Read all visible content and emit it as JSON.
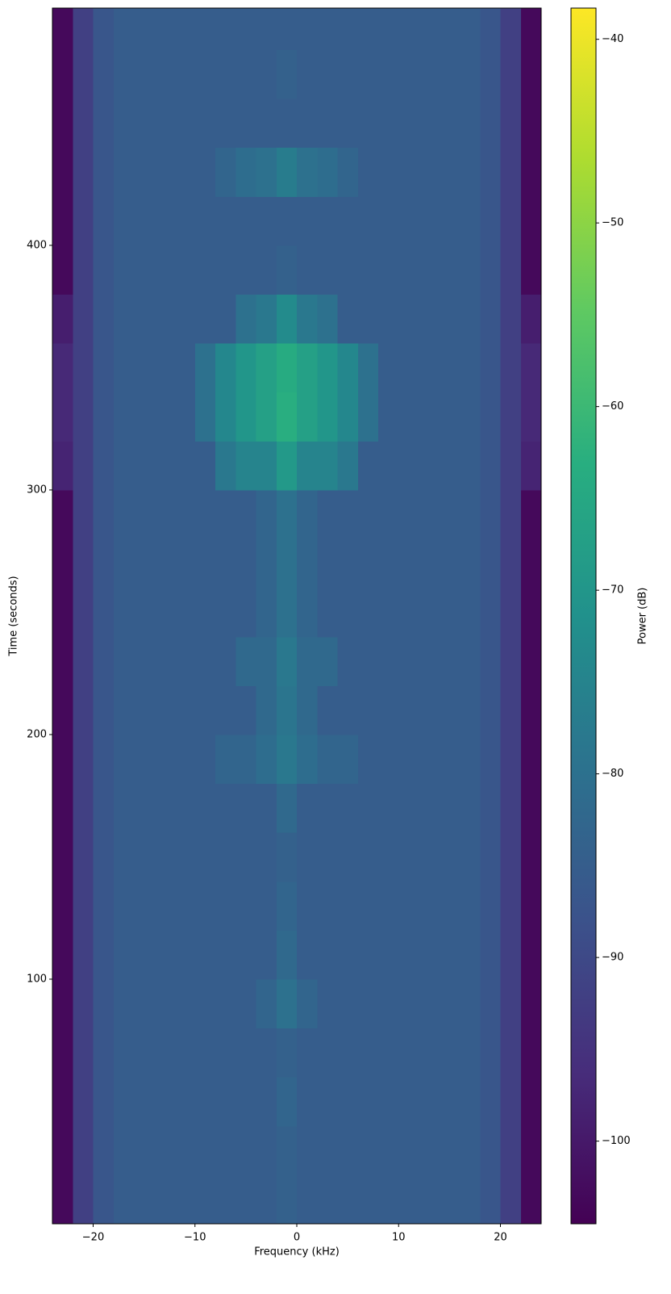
{
  "chart_data": {
    "type": "heatmap",
    "x_label": "Frequency (kHz)",
    "y_label": "Time (seconds)",
    "colorbar_label": "Power (dB)",
    "colormap": "viridis",
    "xlim": [
      -24,
      24
    ],
    "ylim": [
      0,
      497
    ],
    "clim": [
      -104.5,
      -38.3
    ],
    "xticks": [
      {
        "value": -20,
        "label": "−20"
      },
      {
        "value": -10,
        "label": "−10"
      },
      0,
      10,
      20
    ],
    "yticks": [
      100,
      200,
      300,
      400
    ],
    "cticks": [
      {
        "value": -40,
        "label": "−40"
      },
      {
        "value": -50,
        "label": "−50"
      },
      {
        "value": -60,
        "label": "−60"
      },
      {
        "value": -70,
        "label": "−70"
      },
      {
        "value": -80,
        "label": "−80"
      },
      {
        "value": -90,
        "label": "−90"
      },
      {
        "value": -100,
        "label": "−100"
      }
    ],
    "x_bins": [
      -24,
      -22,
      -20,
      -18,
      -16,
      -14,
      -12,
      -10,
      -8,
      -6,
      -4,
      -2,
      0,
      2,
      4,
      6,
      8,
      10,
      12,
      14,
      16,
      18,
      20,
      22,
      24
    ],
    "y_bins": [
      0,
      20,
      40,
      60,
      80,
      100,
      120,
      140,
      160,
      180,
      200,
      220,
      240,
      260,
      280,
      300,
      320,
      340,
      360,
      380,
      400,
      420,
      440,
      460,
      480,
      497
    ],
    "z": [
      [
        -103,
        -92,
        -87,
        -85,
        -85,
        -85,
        -85,
        -85,
        -85,
        -85,
        -85,
        -84,
        -85,
        -85,
        -85,
        -85,
        -85,
        -85,
        -85,
        -85,
        -85,
        -87,
        -92,
        -103
      ],
      [
        -103,
        -92,
        -87,
        -85,
        -85,
        -85,
        -85,
        -85,
        -85,
        -85,
        -85,
        -84,
        -85,
        -85,
        -85,
        -85,
        -85,
        -85,
        -85,
        -85,
        -85,
        -87,
        -92,
        -103
      ],
      [
        -103,
        -92,
        -87,
        -85,
        -85,
        -85,
        -85,
        -85,
        -85,
        -85,
        -85,
        -83,
        -85,
        -85,
        -85,
        -85,
        -85,
        -85,
        -85,
        -85,
        -85,
        -87,
        -92,
        -103
      ],
      [
        -103,
        -92,
        -87,
        -85,
        -85,
        -85,
        -85,
        -85,
        -85,
        -85,
        -85,
        -84,
        -85,
        -85,
        -85,
        -85,
        -85,
        -85,
        -85,
        -85,
        -85,
        -87,
        -92,
        -103
      ],
      [
        -103,
        -92,
        -87,
        -85,
        -85,
        -85,
        -85,
        -85,
        -85,
        -85,
        -83,
        -80,
        -83,
        -85,
        -85,
        -85,
        -85,
        -85,
        -85,
        -85,
        -85,
        -87,
        -92,
        -103
      ],
      [
        -103,
        -92,
        -87,
        -85,
        -85,
        -85,
        -85,
        -85,
        -85,
        -85,
        -85,
        -82,
        -85,
        -85,
        -85,
        -85,
        -85,
        -85,
        -85,
        -85,
        -85,
        -87,
        -92,
        -103
      ],
      [
        -103,
        -92,
        -87,
        -85,
        -85,
        -85,
        -85,
        -85,
        -85,
        -85,
        -85,
        -83,
        -85,
        -85,
        -85,
        -85,
        -85,
        -85,
        -85,
        -85,
        -85,
        -87,
        -92,
        -103
      ],
      [
        -103,
        -92,
        -87,
        -85,
        -85,
        -85,
        -85,
        -85,
        -85,
        -85,
        -85,
        -84,
        -85,
        -85,
        -85,
        -85,
        -85,
        -85,
        -85,
        -85,
        -85,
        -87,
        -92,
        -103
      ],
      [
        -103,
        -92,
        -87,
        -85,
        -85,
        -85,
        -85,
        -85,
        -85,
        -85,
        -85,
        -82,
        -85,
        -85,
        -85,
        -85,
        -85,
        -85,
        -85,
        -85,
        -85,
        -87,
        -92,
        -103
      ],
      [
        -103,
        -92,
        -87,
        -85,
        -85,
        -85,
        -85,
        -85,
        -83,
        -83,
        -81,
        -78,
        -81,
        -83,
        -83,
        -85,
        -85,
        -85,
        -85,
        -85,
        -85,
        -87,
        -92,
        -103
      ],
      [
        -103,
        -92,
        -87,
        -85,
        -85,
        -85,
        -85,
        -85,
        -85,
        -85,
        -82,
        -79,
        -82,
        -85,
        -85,
        -85,
        -85,
        -85,
        -85,
        -85,
        -85,
        -87,
        -92,
        -103
      ],
      [
        -103,
        -92,
        -87,
        -85,
        -85,
        -85,
        -85,
        -85,
        -85,
        -82,
        -82,
        -78,
        -82,
        -82,
        -85,
        -85,
        -85,
        -85,
        -85,
        -85,
        -85,
        -87,
        -92,
        -103
      ],
      [
        -103,
        -92,
        -87,
        -85,
        -85,
        -85,
        -85,
        -85,
        -85,
        -85,
        -83,
        -80,
        -83,
        -85,
        -85,
        -85,
        -85,
        -85,
        -85,
        -85,
        -85,
        -87,
        -92,
        -103
      ],
      [
        -103,
        -92,
        -87,
        -85,
        -85,
        -85,
        -85,
        -85,
        -85,
        -85,
        -83,
        -80,
        -83,
        -85,
        -85,
        -85,
        -85,
        -85,
        -85,
        -85,
        -85,
        -87,
        -92,
        -103
      ],
      [
        -103,
        -92,
        -87,
        -85,
        -85,
        -85,
        -85,
        -85,
        -85,
        -85,
        -83,
        -80,
        -83,
        -85,
        -85,
        -85,
        -85,
        -85,
        -85,
        -85,
        -85,
        -87,
        -92,
        -103
      ],
      [
        -98,
        -92,
        -87,
        -85,
        -85,
        -85,
        -85,
        -85,
        -78,
        -75,
        -75,
        -69,
        -75,
        -75,
        -78,
        -85,
        -85,
        -85,
        -85,
        -85,
        -85,
        -87,
        -92,
        -98
      ],
      [
        -97,
        -92,
        -87,
        -85,
        -85,
        -85,
        -85,
        -80,
        -74,
        -70,
        -67,
        -63,
        -67,
        -70,
        -74,
        -80,
        -85,
        -85,
        -85,
        -85,
        -85,
        -87,
        -92,
        -97
      ],
      [
        -97,
        -92,
        -87,
        -85,
        -85,
        -85,
        -85,
        -80,
        -74,
        -70,
        -67,
        -64,
        -67,
        -70,
        -74,
        -80,
        -85,
        -85,
        -85,
        -85,
        -85,
        -87,
        -92,
        -97
      ],
      [
        -99,
        -92,
        -87,
        -85,
        -85,
        -85,
        -85,
        -85,
        -85,
        -80,
        -78,
        -73,
        -78,
        -80,
        -85,
        -85,
        -85,
        -85,
        -85,
        -85,
        -85,
        -87,
        -92,
        -99
      ],
      [
        -103,
        -92,
        -87,
        -85,
        -85,
        -85,
        -85,
        -85,
        -85,
        -85,
        -85,
        -84,
        -85,
        -85,
        -85,
        -85,
        -85,
        -85,
        -85,
        -85,
        -85,
        -87,
        -92,
        -103
      ],
      [
        -103,
        -92,
        -87,
        -85,
        -85,
        -85,
        -85,
        -85,
        -85,
        -85,
        -85,
        -85,
        -85,
        -85,
        -85,
        -85,
        -85,
        -85,
        -85,
        -85,
        -85,
        -87,
        -92,
        -103
      ],
      [
        -103,
        -92,
        -87,
        -85,
        -85,
        -85,
        -85,
        -85,
        -83,
        -81,
        -80,
        -77,
        -80,
        -81,
        -83,
        -85,
        -85,
        -85,
        -85,
        -85,
        -85,
        -87,
        -92,
        -103
      ],
      [
        -103,
        -92,
        -87,
        -85,
        -85,
        -85,
        -85,
        -85,
        -85,
        -85,
        -85,
        -85,
        -85,
        -85,
        -85,
        -85,
        -85,
        -85,
        -85,
        -85,
        -85,
        -87,
        -92,
        -103
      ],
      [
        -103,
        -92,
        -87,
        -85,
        -85,
        -85,
        -85,
        -85,
        -85,
        -85,
        -85,
        -84,
        -85,
        -85,
        -85,
        -85,
        -85,
        -85,
        -85,
        -85,
        -85,
        -87,
        -92,
        -103
      ],
      [
        -103,
        -92,
        -87,
        -85,
        -85,
        -85,
        -85,
        -85,
        -85,
        -85,
        -85,
        -85,
        -85,
        -85,
        -85,
        -85,
        -85,
        -85,
        -85,
        -85,
        -85,
        -87,
        -92,
        -103
      ]
    ]
  }
}
